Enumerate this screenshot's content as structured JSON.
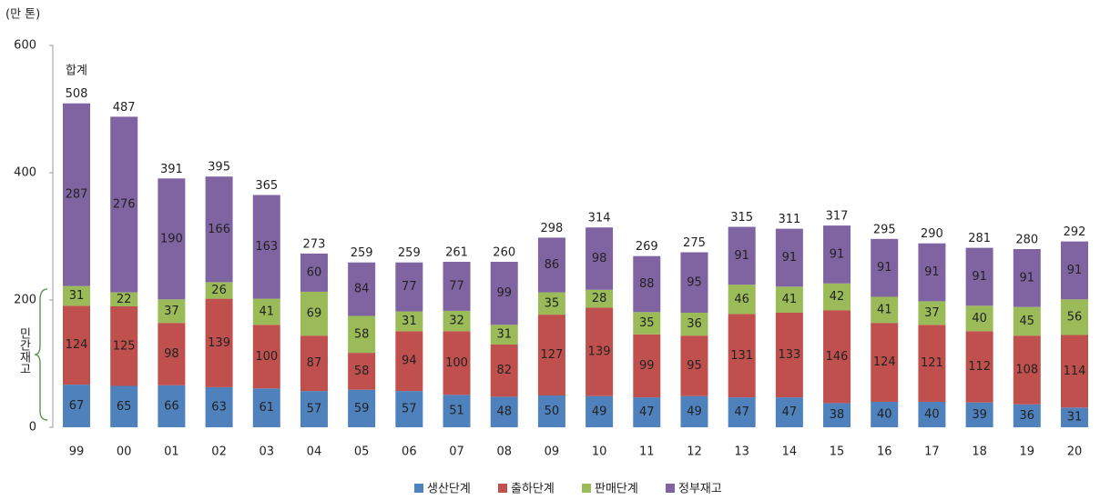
{
  "chart_data": {
    "type": "stacked_bar",
    "unit_label": "(만 톤)",
    "total_label": "합계",
    "private_label": "민간재고",
    "categories": [
      "99",
      "00",
      "01",
      "02",
      "03",
      "04",
      "05",
      "06",
      "07",
      "08",
      "09",
      "10",
      "11",
      "12",
      "13",
      "14",
      "15",
      "16",
      "17",
      "18",
      "19",
      "20"
    ],
    "series": [
      {
        "name": "생산단계",
        "color": "#4f81bd",
        "values": [
          67,
          65,
          66,
          63,
          61,
          57,
          59,
          57,
          51,
          48,
          50,
          49,
          47,
          49,
          47,
          47,
          38,
          40,
          40,
          39,
          36,
          31
        ]
      },
      {
        "name": "출하단계",
        "color": "#c0504d",
        "values": [
          124,
          125,
          98,
          139,
          100,
          87,
          58,
          94,
          100,
          82,
          127,
          139,
          99,
          95,
          131,
          133,
          146,
          124,
          121,
          112,
          108,
          114
        ]
      },
      {
        "name": "판매단계",
        "color": "#9bbb59",
        "values": [
          31,
          22,
          37,
          26,
          41,
          69,
          58,
          31,
          32,
          31,
          35,
          28,
          35,
          36,
          46,
          41,
          42,
          41,
          37,
          40,
          45,
          56
        ]
      },
      {
        "name": "정부재고",
        "color": "#8064a2",
        "values": [
          287,
          276,
          190,
          166,
          163,
          60,
          84,
          77,
          77,
          99,
          86,
          98,
          88,
          95,
          91,
          91,
          91,
          91,
          91,
          91,
          91,
          91
        ]
      }
    ],
    "totals": [
      508,
      487,
      391,
      395,
      365,
      273,
      259,
      259,
      261,
      260,
      298,
      314,
      269,
      275,
      315,
      311,
      317,
      295,
      290,
      281,
      280,
      292
    ],
    "ylim": [
      0,
      600
    ],
    "yticks": [
      0,
      200,
      400,
      600
    ],
    "grid": false
  }
}
